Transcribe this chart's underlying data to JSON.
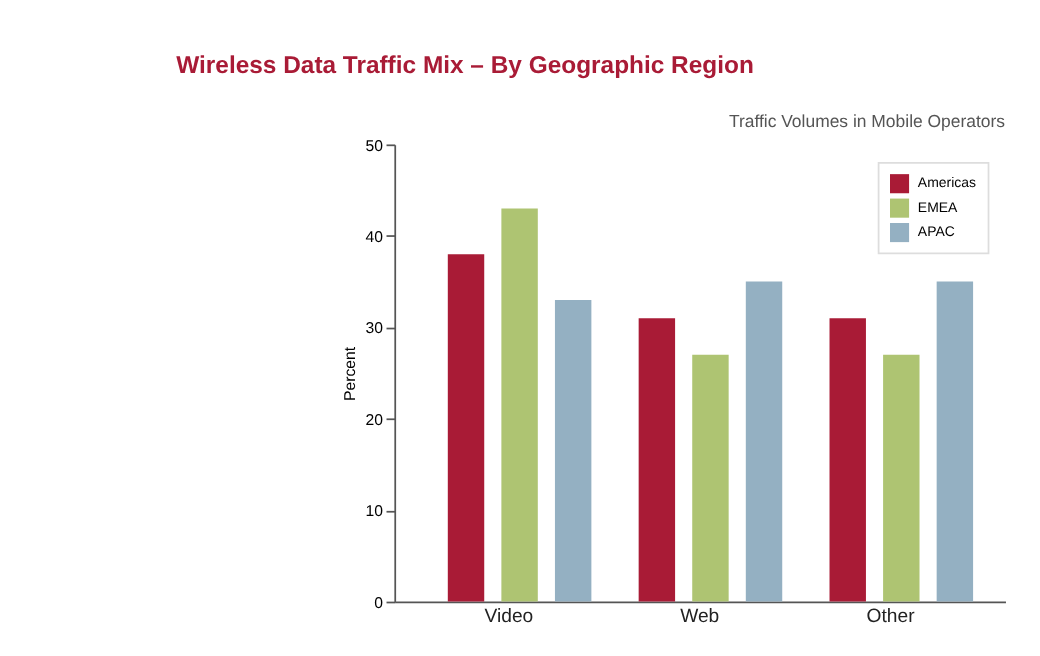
{
  "chart_data": {
    "type": "bar",
    "title": "Wireless Data Traffic Mix – By Geographic Region",
    "subtitle": "Traffic Volumes in Mobile Operators",
    "ylabel": "Percent",
    "categories": [
      "Video",
      "Web",
      "Other"
    ],
    "series": [
      {
        "name": "Americas",
        "color": "#a91b36",
        "values": [
          38,
          31,
          31
        ]
      },
      {
        "name": "EMEA",
        "color": "#aec472",
        "values": [
          43,
          27,
          27
        ]
      },
      {
        "name": "APAC",
        "color": "#94b0c2",
        "values": [
          33,
          35,
          35
        ]
      }
    ],
    "ylim": [
      0,
      50
    ],
    "yticks": [
      0,
      10,
      20,
      30,
      40,
      50
    ],
    "grid": false,
    "legend": "top right"
  }
}
